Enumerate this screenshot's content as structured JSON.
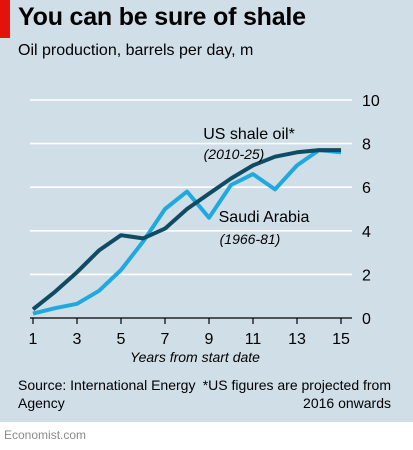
{
  "chart_data": {
    "type": "line",
    "title": "You can be sure of shale",
    "subtitle": "Oil production, barrels per day, m",
    "xlabel": "Years from start date",
    "ylabel": "",
    "xlim": [
      1,
      15
    ],
    "ylim": [
      0,
      10
    ],
    "x_ticks": [
      "1",
      "3",
      "5",
      "7",
      "9",
      "11",
      "13",
      "15"
    ],
    "y_ticks": [
      "0",
      "2",
      "4",
      "6",
      "8",
      "10"
    ],
    "grid": true,
    "series": [
      {
        "name": "US shale oil*",
        "note": "(2010-25)",
        "color": "#0f4c64",
        "x": [
          1,
          2,
          3,
          4,
          5,
          6,
          7,
          8,
          9,
          10,
          11,
          12,
          13,
          14,
          15
        ],
        "values": [
          0.4,
          1.2,
          2.1,
          3.1,
          3.8,
          3.65,
          4.1,
          5.0,
          5.7,
          6.4,
          7.0,
          7.4,
          7.6,
          7.7,
          7.7
        ]
      },
      {
        "name": "Saudi Arabia",
        "note": "(1966-81)",
        "color": "#1fa9e0",
        "x": [
          1,
          2,
          3,
          4,
          5,
          6,
          7,
          8,
          9,
          10,
          11,
          12,
          13,
          14,
          15
        ],
        "values": [
          0.2,
          0.45,
          0.65,
          1.25,
          2.2,
          3.5,
          5.0,
          5.8,
          4.6,
          6.1,
          6.6,
          5.9,
          7.0,
          7.7,
          7.6
        ]
      }
    ],
    "source": "Source: International Energy Agency",
    "footnote": "*US figures are projected from 2016 onwards"
  },
  "brand": "Economist.com"
}
